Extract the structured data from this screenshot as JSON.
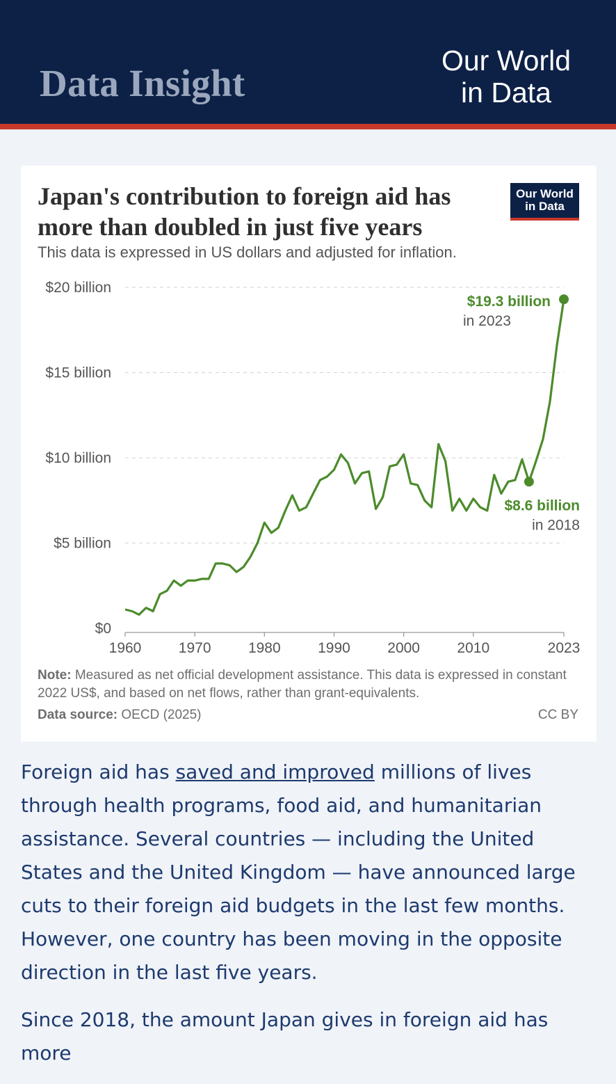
{
  "header": {
    "title": "Data Insight",
    "logo_line1": "Our World",
    "logo_line2": "in Data"
  },
  "card": {
    "title_line1": "Japan's contribution to foreign aid has",
    "title_line2": "more than doubled in just five years",
    "subtitle": "This data is expressed in US dollars and adjusted for inflation.",
    "logo_line1": "Our World",
    "logo_line2": "in Data",
    "note_label": "Note:",
    "note_text": "Measured as net official development assistance. This data is expressed in constant 2022 US$, and based on net flows, rather than grant-equivalents.",
    "source_label": "Data source:",
    "source_text": "OECD (2025)",
    "license": "CC BY"
  },
  "chart_data": {
    "type": "line",
    "title": "Japan's contribution to foreign aid has more than doubled in just five years",
    "subtitle": "This data is expressed in US dollars and adjusted for inflation.",
    "ylim": [
      0,
      20
    ],
    "y_ticks": [
      {
        "value": 0,
        "label": "$0"
      },
      {
        "value": 5,
        "label": "$5 billion"
      },
      {
        "value": 10,
        "label": "$10 billion"
      },
      {
        "value": 15,
        "label": "$15 billion"
      },
      {
        "value": 20,
        "label": "$20 billion"
      }
    ],
    "x_ticks": [
      1960,
      1970,
      1980,
      1990,
      2000,
      2010,
      2023
    ],
    "xlim": [
      1960,
      2023
    ],
    "grid": true,
    "color": "#4c8b2b",
    "series": [
      {
        "x": [
          1960,
          1961,
          1962,
          1963,
          1964,
          1965,
          1966,
          1967,
          1968,
          1969,
          1970,
          1971,
          1972,
          1973,
          1974,
          1975,
          1976,
          1977,
          1978,
          1979,
          1980,
          1981,
          1982,
          1983,
          1984,
          1985,
          1986,
          1987,
          1988,
          1989,
          1990,
          1991,
          1992,
          1993,
          1994,
          1995,
          1996,
          1997,
          1998,
          1999,
          2000,
          2001,
          2002,
          2003,
          2004,
          2005,
          2006,
          2007,
          2008,
          2009,
          2010,
          2011,
          2012,
          2013,
          2014,
          2015,
          2016,
          2017,
          2018,
          2019,
          2020,
          2021,
          2022,
          2023
        ],
        "values": [
          1.1,
          1.0,
          0.8,
          1.2,
          1.0,
          2.0,
          2.2,
          2.8,
          2.5,
          2.8,
          2.8,
          2.9,
          2.9,
          3.8,
          3.8,
          3.7,
          3.3,
          3.6,
          4.2,
          5.0,
          6.2,
          5.6,
          5.9,
          6.9,
          7.8,
          6.9,
          7.1,
          7.9,
          8.7,
          8.9,
          9.3,
          10.2,
          9.7,
          8.5,
          9.1,
          9.2,
          7.0,
          7.7,
          9.5,
          9.6,
          10.2,
          8.5,
          8.4,
          7.5,
          7.1,
          10.8,
          9.8,
          6.9,
          7.6,
          6.9,
          7.6,
          7.1,
          6.9,
          9.0,
          7.9,
          8.6,
          8.7,
          9.9,
          8.6,
          9.8,
          11.1,
          13.3,
          16.6,
          19.3
        ]
      }
    ],
    "annotations": [
      {
        "x": 2023,
        "value_label": "$19.3 billion",
        "label": "in 2023"
      },
      {
        "x": 2018,
        "value_label": "$8.6 billion",
        "label": "in 2018"
      }
    ]
  },
  "article": {
    "p1_before": "Foreign aid has ",
    "p1_link": "saved and improved",
    "p1_after": " millions of lives through health programs, food aid, and humanitarian assistance. Several countries — including the United States and the United Kingdom — have announced large cuts to their foreign aid budgets in the last few months. However, one country has been moving in the opposite direction in the last five years.",
    "p2": "Since 2018, the amount Japan gives in foreign aid has more"
  }
}
